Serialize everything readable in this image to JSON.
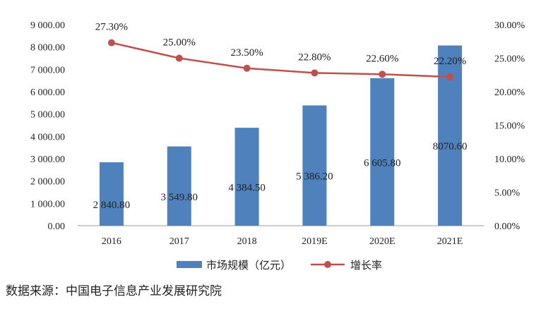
{
  "chart_data": {
    "type": "bar",
    "categories": [
      "2016",
      "2017",
      "2018",
      "2019E",
      "2020E",
      "2021E"
    ],
    "series": [
      {
        "name": "市场规模（亿元）",
        "type": "bar",
        "axis": "left",
        "color": "#4f81bd",
        "values": [
          2840.8,
          3549.8,
          4384.5,
          5386.2,
          6605.8,
          8070.6
        ],
        "labels": [
          "2 840.80",
          "3 549.80",
          "4 384.50",
          "5 386.20",
          "6 605.80",
          "8070.60"
        ]
      },
      {
        "name": "增长率",
        "type": "line",
        "axis": "right",
        "color": "#c0504d",
        "values": [
          27.3,
          25.0,
          23.5,
          22.8,
          22.6,
          22.2
        ],
        "labels": [
          "27.30%",
          "25.00%",
          "23.50%",
          "22.80%",
          "22.60%",
          "22.20%"
        ]
      }
    ],
    "y_left": {
      "ylim": [
        0,
        9000
      ],
      "ticks": [
        "0.00",
        "1 000.00",
        "2 000.00",
        "3 000.00",
        "4 000.00",
        "5 000.00",
        "6 000.00",
        "7 000.00",
        "8 000.00",
        "9 000.00"
      ]
    },
    "y_right": {
      "ylim": [
        0,
        30
      ],
      "ticks": [
        "0.00%",
        "5.00%",
        "10.00%",
        "15.00%",
        "20.00%",
        "25.00%",
        "30.00%"
      ]
    },
    "grid": false,
    "legend_position": "bottom"
  },
  "source_text": "数据来源：中国电子信息产业发展研究院"
}
